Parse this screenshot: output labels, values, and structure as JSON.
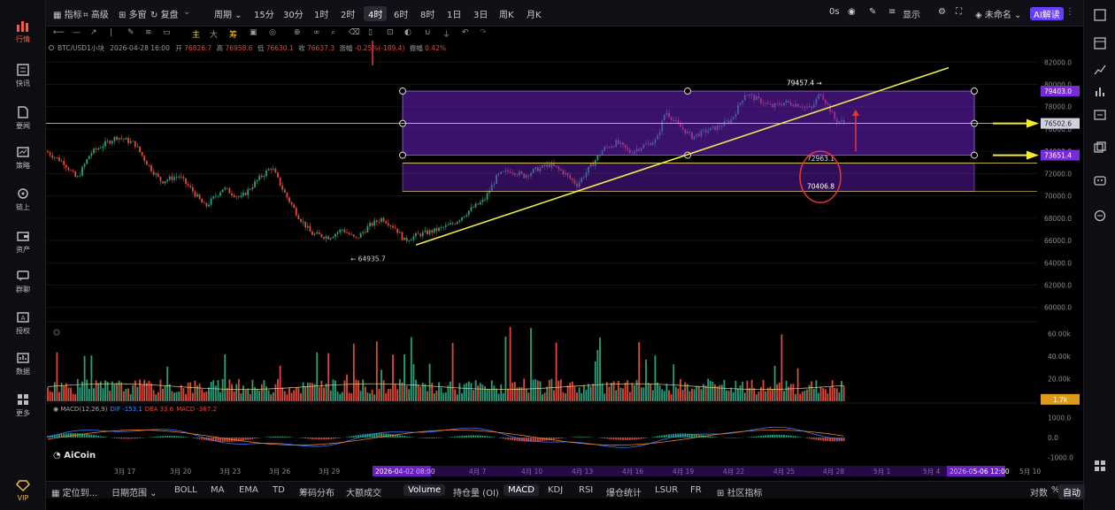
{
  "sidebar": {
    "items": [
      {
        "label": "行情",
        "icon": "chart-bars-icon",
        "active": true
      },
      {
        "label": "快讯",
        "icon": "news-flash-icon"
      },
      {
        "label": "要闻",
        "icon": "document-icon"
      },
      {
        "label": "策略",
        "icon": "strategy-icon"
      },
      {
        "label": "链上",
        "icon": "chain-icon"
      },
      {
        "label": "资产",
        "icon": "wallet-icon"
      },
      {
        "label": "群聊",
        "icon": "chat-icon"
      },
      {
        "label": "授权",
        "icon": "authorize-icon"
      },
      {
        "label": "数据",
        "icon": "data-icon"
      },
      {
        "label": "更多",
        "icon": "grid-icon"
      }
    ],
    "vip_label": "VIP"
  },
  "topbar": {
    "indicator": "指标",
    "advanced": "高级",
    "multi": "多窗",
    "restore": "复盘",
    "period": "周期",
    "intervals": [
      "15分",
      "30分",
      "1时",
      "2时",
      "4时",
      "6时",
      "8时",
      "1日",
      "3日",
      "周K",
      "月K"
    ],
    "selected_interval": "4时",
    "zero_s": "0s",
    "display": "显示",
    "unnamed": "未命名",
    "ai_read": "AI解读"
  },
  "toolbar2": {
    "items": [
      "主",
      "大",
      "筹"
    ]
  },
  "ohlc_line": {
    "symbol": "BTC/USD1小块",
    "datetime": "2026-04-28 16:00",
    "open_label": "开",
    "open": "76826.7",
    "high_label": "高",
    "high": "76958.6",
    "low_label": "低",
    "low": "76630.1",
    "close_label": "收",
    "close": "76637.3",
    "change_label": "涨幅",
    "change": "-0.25%(-189.4)",
    "amplitude_label": "振幅",
    "amplitude": "0.42%"
  },
  "chart_data": {
    "type": "candlestick",
    "y_ticks": [
      "82000.0",
      "80000.0",
      "78000.0",
      "76000.0",
      "74000.0",
      "72000.0",
      "70000.0",
      "68000.0",
      "66000.0",
      "64000.0",
      "62000.0",
      "60000.0"
    ],
    "ylim": [
      59500,
      82500
    ],
    "x_ticks": [
      "3月 17",
      "3月 20",
      "3月 23",
      "3月 26",
      "3月 29",
      "2026-04-02 08:00",
      "4",
      "4月 7",
      "4月 10",
      "4月 13",
      "4月 16",
      "4月 19",
      "4月 22",
      "4月 25",
      "4月 28",
      "5月 1",
      "5月 4",
      "2026-05-06 12:00",
      "5月 10"
    ],
    "annotations": {
      "low_marker": "64935.7",
      "high_marker": "79457.4",
      "mid_label_1": "72963.1",
      "mid_label_2": "70406.8"
    },
    "price_tags": [
      {
        "value": "79403.0",
        "color": "#7a2bd9"
      },
      {
        "value": "76502.6",
        "color": "#d0d0e0"
      },
      {
        "value": "73651.4",
        "color": "#7a2bd9"
      }
    ],
    "volume_ticks": [
      "60.00k",
      "40.00k",
      "20.00k"
    ],
    "volume_tag": "1.7k",
    "macd_label": "MACD(12,26,9)",
    "macd_dif": "DIF -153.1",
    "macd_dea": "DEA 33.6",
    "macd_value": "MACD -367.2",
    "macd_ticks": [
      "1000.0",
      "0.0",
      "-1000.0"
    ],
    "colors": {
      "up": "#26a17b",
      "down": "#e2493a",
      "channel": "#6a1fc2",
      "trend": "#f0ea4c",
      "arrow_red": "#e53935"
    }
  },
  "watermark": "AiCoin",
  "bottombar": {
    "locate": "定位到...",
    "date_range": "日期范围",
    "indicators": [
      "BOLL",
      "MA",
      "EMA",
      "TD",
      "筹码分布",
      "大额成交"
    ],
    "sub_indicators": [
      "Volume",
      "持仓量 (OI)",
      "MACD",
      "KDJ",
      "RSI",
      "爆仓统计",
      "LSUR",
      "FR"
    ],
    "community": "社区指标",
    "log": "对数",
    "pct": "%",
    "auto": "自动"
  }
}
